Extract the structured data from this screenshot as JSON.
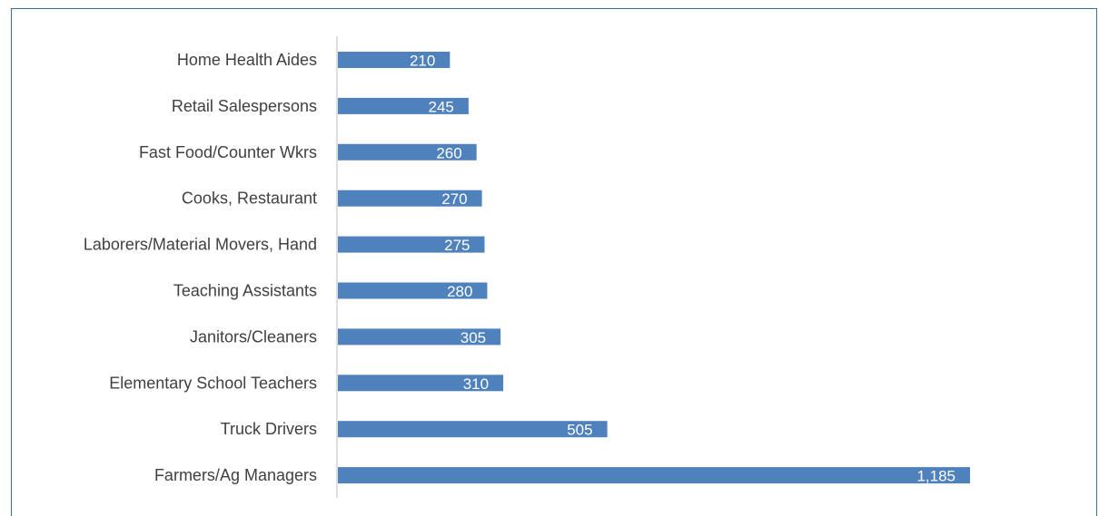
{
  "colors": {
    "bar": "#4f81bd",
    "frame": "#3f6e94",
    "axis": "#bfbfbf",
    "label_text": "#404040",
    "value_text": "#ffffff"
  },
  "chart_data": {
    "type": "bar",
    "orientation": "horizontal",
    "title": "",
    "xlabel": "",
    "ylabel": "",
    "categories": [
      "Home Health Aides",
      "Retail Salespersons",
      "Fast Food/Counter Wkrs",
      "Cooks, Restaurant",
      "Laborers/Material Movers, Hand",
      "Teaching Assistants",
      "Janitors/Cleaners",
      "Elementary School Teachers",
      "Truck Drivers",
      "Farmers/Ag Managers"
    ],
    "values": [
      210,
      245,
      260,
      270,
      275,
      280,
      305,
      310,
      505,
      1185
    ],
    "value_labels": [
      "210",
      "245",
      "260",
      "270",
      "275",
      "280",
      "305",
      "310",
      "505",
      "1,185"
    ],
    "xlim": [
      0,
      1185
    ],
    "grid": false,
    "legend": "none"
  }
}
